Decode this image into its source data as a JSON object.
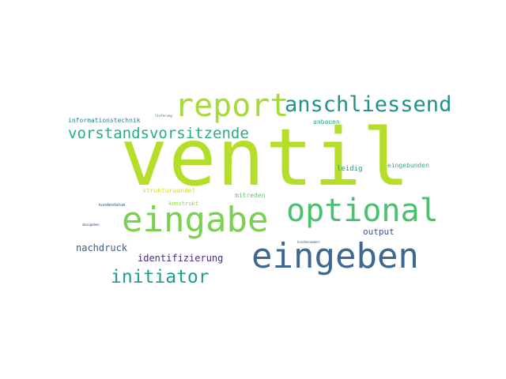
{
  "words": {
    "ventil": {
      "text": "ventil",
      "color": "#b5de2b"
    },
    "eingeben": {
      "text": "eingeben",
      "color": "#3e6891"
    },
    "eingabe": {
      "text": "eingabe",
      "color": "#7ad151"
    },
    "optional": {
      "text": "optional",
      "color": "#4ac16d"
    },
    "report": {
      "text": "report",
      "color": "#a5db36"
    },
    "anschliessend": {
      "text": "anschliessend",
      "color": "#21918c"
    },
    "vorstandsvorsitzende": {
      "text": "vorstandsvorsitzende",
      "color": "#28ae80"
    },
    "initiator": {
      "text": "initiator",
      "color": "#1f9e89"
    },
    "identifizierung": {
      "text": "identifizierung",
      "color": "#472d7b"
    },
    "nachdruck": {
      "text": "nachdruck",
      "color": "#33638d"
    },
    "output": {
      "text": "output",
      "color": "#3a548c"
    },
    "leidig": {
      "text": "leidig",
      "color": "#1fa088"
    },
    "eingebunden": {
      "text": "eingebunden",
      "color": "#2ab07f"
    },
    "mitreden": {
      "text": "mitreden",
      "color": "#5ec962"
    },
    "anbauen": {
      "text": "anbauen",
      "color": "#29af7f"
    },
    "informationstechnik": {
      "text": "informationstechnik",
      "color": "#25848e"
    },
    "strukturwandel": {
      "text": "strukturwandel",
      "color": "#d8e219"
    },
    "konstrukt": {
      "text": "konstrukt",
      "color": "#90d743"
    },
    "kundendatum": {
      "text": "kundendatum",
      "color": "#3b528b"
    },
    "tiny1": {
      "text": "lieferung",
      "color": "#2c728e"
    },
    "tiny2": {
      "text": "abzugeben",
      "color": "#443a83"
    },
    "tiny3": {
      "text": "kundennummer",
      "color": "#31688e"
    }
  }
}
